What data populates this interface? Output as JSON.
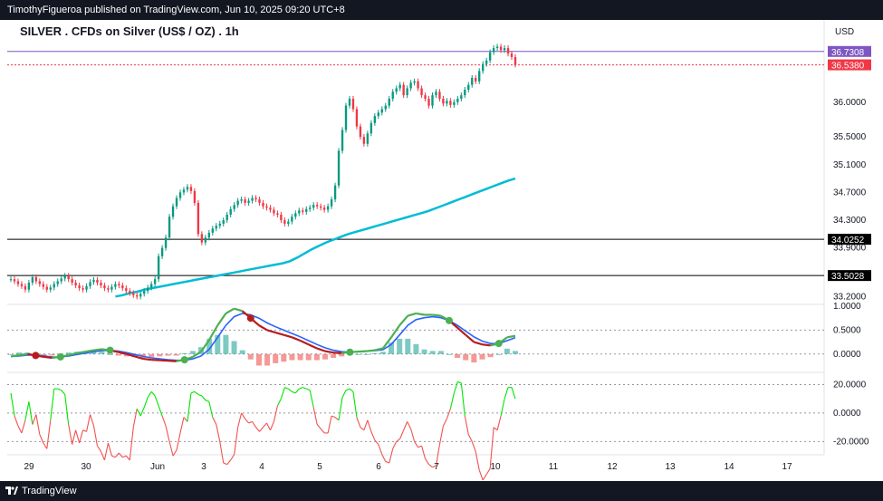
{
  "header": {
    "publisher": "TimothyFigueroa published on TradingView.com, Jun 10, 2025 09:20 UTC+8"
  },
  "footer": {
    "brand": "TradingView"
  },
  "chart_data": [
    {
      "type": "candlestick",
      "title": "SILVER . CFDs on Silver (US$ / OZ) . 1h",
      "currency": "USD",
      "ylim": [
        33.1,
        36.95
      ],
      "yticks": [
        "36.0000",
        "35.5000",
        "35.1000",
        "34.7000",
        "34.3000",
        "33.9000",
        "33.2000"
      ],
      "xticks": [
        "29",
        "30",
        "Jun",
        "3",
        "4",
        "5",
        "6",
        "7",
        "10",
        "11",
        "12",
        "13",
        "14",
        "17"
      ],
      "price_labels": [
        {
          "value": "36.7308",
          "color": "#7e57c2"
        },
        {
          "value": "36.5380",
          "color": "#f23645"
        },
        {
          "value": "34.0252",
          "color": "#000000"
        },
        {
          "value": "33.5028",
          "color": "#000000"
        }
      ],
      "closes": [
        33.45,
        33.42,
        33.38,
        33.35,
        33.3,
        33.4,
        33.48,
        33.42,
        33.38,
        33.34,
        33.3,
        33.33,
        33.38,
        33.42,
        33.46,
        33.5,
        33.45,
        33.4,
        33.36,
        33.32,
        33.3,
        33.35,
        33.41,
        33.44,
        33.4,
        33.36,
        33.32,
        33.3,
        33.34,
        33.38,
        33.36,
        33.32,
        33.28,
        33.25,
        33.22,
        33.2,
        33.24,
        33.28,
        33.33,
        33.38,
        33.45,
        33.78,
        33.9,
        34.05,
        34.35,
        34.5,
        34.62,
        34.7,
        34.74,
        34.78,
        34.72,
        34.55,
        34.1,
        33.98,
        34.05,
        34.12,
        34.18,
        34.22,
        34.25,
        34.3,
        34.38,
        34.46,
        34.52,
        34.58,
        34.6,
        34.55,
        34.58,
        34.62,
        34.6,
        34.55,
        34.5,
        34.48,
        34.45,
        34.4,
        34.38,
        34.3,
        34.25,
        34.28,
        34.35,
        34.4,
        34.44,
        34.42,
        34.46,
        34.48,
        34.52,
        34.5,
        34.48,
        34.45,
        34.5,
        34.6,
        34.8,
        35.3,
        35.6,
        35.95,
        36.05,
        35.9,
        35.65,
        35.5,
        35.4,
        35.55,
        35.7,
        35.8,
        35.85,
        35.9,
        35.95,
        36.05,
        36.15,
        36.2,
        36.25,
        36.1,
        36.2,
        36.28,
        36.3,
        36.2,
        36.1,
        36.05,
        35.95,
        36.1,
        36.15,
        36.05,
        35.98,
        36.02,
        35.96,
        36.0,
        36.05,
        36.1,
        36.18,
        36.25,
        36.35,
        36.3,
        36.45,
        36.55,
        36.6,
        36.72,
        36.78,
        36.8,
        36.75,
        36.78,
        36.7,
        36.65,
        36.54
      ],
      "sma_start_index": 29,
      "sma": [
        33.2,
        33.22,
        33.25,
        33.27,
        33.3,
        33.32,
        33.34,
        33.36,
        33.38,
        33.4,
        33.42,
        33.44,
        33.46,
        33.48,
        33.5,
        33.52,
        33.54,
        33.56,
        33.58,
        33.6,
        33.62,
        33.64,
        33.66,
        33.68,
        33.71,
        33.76,
        33.82,
        33.88,
        33.93,
        33.98,
        34.02,
        34.06,
        34.1,
        34.13,
        34.16,
        34.19,
        34.22,
        34.25,
        34.28,
        34.31,
        34.34,
        34.37,
        34.4,
        34.43,
        34.47,
        34.51,
        34.55,
        34.59,
        34.63,
        34.67,
        34.71,
        34.75,
        34.79,
        34.83,
        34.87,
        34.9
      ],
      "rsi_fast": [
        -0.05,
        -0.02,
        0.0,
        -0.03,
        -0.06,
        -0.08,
        -0.06,
        -0.02,
        0.02,
        0.05,
        0.08,
        0.1,
        0.08,
        0.04,
        0.0,
        -0.05,
        -0.1,
        -0.12,
        -0.13,
        -0.14,
        -0.15,
        -0.12,
        -0.06,
        0.05,
        0.3,
        0.6,
        0.85,
        0.95,
        0.9,
        0.75,
        0.6,
        0.5,
        0.45,
        0.4,
        0.35,
        0.28,
        0.2,
        0.12,
        0.06,
        0.03,
        0.02,
        0.04,
        0.05,
        0.06,
        0.08,
        0.12,
        0.35,
        0.6,
        0.8,
        0.85,
        0.82,
        0.82,
        0.8,
        0.7,
        0.55,
        0.4,
        0.25,
        0.2,
        0.18,
        0.22,
        0.35,
        0.38
      ],
      "rsi_slow": [
        -0.05,
        -0.04,
        -0.02,
        -0.02,
        -0.04,
        -0.06,
        -0.06,
        -0.04,
        -0.01,
        0.02,
        0.05,
        0.07,
        0.08,
        0.06,
        0.03,
        -0.01,
        -0.05,
        -0.08,
        -0.1,
        -0.12,
        -0.13,
        -0.13,
        -0.1,
        -0.04,
        0.1,
        0.35,
        0.6,
        0.78,
        0.85,
        0.82,
        0.75,
        0.65,
        0.57,
        0.5,
        0.43,
        0.36,
        0.28,
        0.2,
        0.13,
        0.08,
        0.05,
        0.04,
        0.05,
        0.06,
        0.07,
        0.09,
        0.2,
        0.4,
        0.6,
        0.72,
        0.76,
        0.78,
        0.76,
        0.7,
        0.6,
        0.48,
        0.36,
        0.27,
        0.22,
        0.22,
        0.28,
        0.34
      ],
      "rsi_yticks": [
        "1.0000",
        "0.5000",
        "0.0000"
      ],
      "osc_values": [
        14,
        -2,
        -9,
        -14,
        -5,
        8,
        -8,
        -1,
        -15,
        -21,
        -25,
        -5,
        17,
        17,
        16,
        13,
        -8,
        -22,
        -12,
        -21,
        -12,
        -13,
        -1,
        -9,
        -23,
        -27,
        -33,
        -21,
        -30,
        -31,
        -28,
        -31,
        -30,
        -33,
        -10,
        3,
        -2,
        4,
        11,
        15,
        12,
        5,
        -2,
        -9,
        -20,
        -30,
        -26,
        -14,
        -3,
        -6,
        14,
        15,
        13,
        12,
        9,
        8,
        -3,
        -8,
        -20,
        -35,
        -36,
        -33,
        -29,
        -10,
        0,
        -4,
        -7,
        -6,
        -10,
        -13,
        -10,
        -7,
        -12,
        -6,
        5,
        10,
        18,
        17,
        15,
        14,
        17,
        18,
        17,
        16,
        4,
        -8,
        -11,
        -14,
        -14,
        -2,
        -3,
        -5,
        11,
        16,
        17,
        15,
        -3,
        -10,
        -12,
        -5,
        -13,
        -19,
        -22,
        -29,
        -34,
        -35,
        -25,
        -20,
        -18,
        -12,
        -6,
        -11,
        -20,
        -24,
        -23,
        -32,
        -36,
        -38,
        -37,
        -22,
        -9,
        -4,
        3,
        14,
        22,
        21,
        -2,
        -15,
        -20,
        -27,
        -40,
        -47,
        -43,
        -39,
        -10,
        -12,
        -2,
        10,
        18,
        18,
        10
      ],
      "osc_yticks": [
        "20.0000",
        "0.0000",
        "-20.0000"
      ]
    }
  ]
}
